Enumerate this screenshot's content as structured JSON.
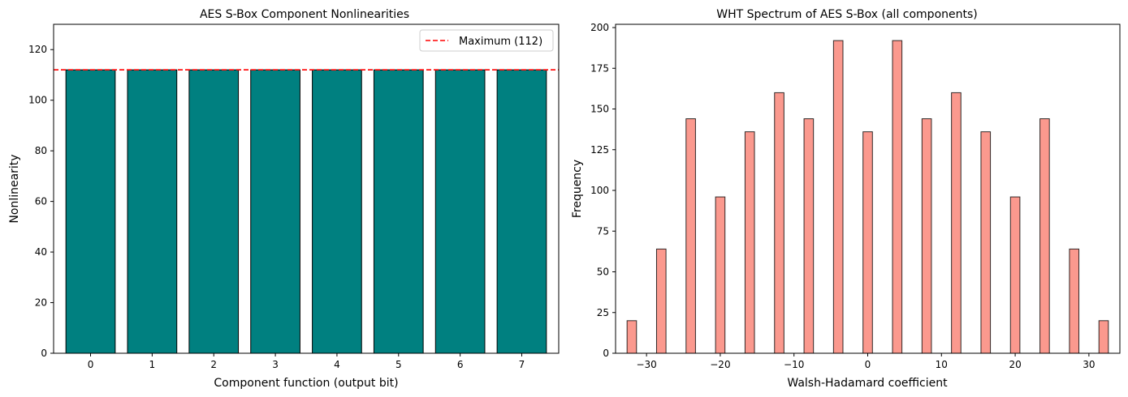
{
  "chart_data": [
    {
      "type": "bar",
      "title": "AES S-Box Component Nonlinearities",
      "xlabel": "Component function (output bit)",
      "ylabel": "Nonlinearity",
      "categories": [
        "0",
        "1",
        "2",
        "3",
        "4",
        "5",
        "6",
        "7"
      ],
      "values": [
        112,
        112,
        112,
        112,
        112,
        112,
        112,
        112
      ],
      "ylim": [
        0,
        130
      ],
      "yticks": [
        0,
        20,
        40,
        60,
        80,
        100,
        120
      ],
      "bar_color": "#008080",
      "reference_line": {
        "value": 112,
        "label": "Maximum (112)",
        "color": "#ff0000",
        "style": "dashed"
      },
      "legend": {
        "position": "top-right",
        "entries": [
          "Maximum (112)"
        ]
      },
      "grid": false
    },
    {
      "type": "bar",
      "title": "WHT Spectrum of AES S-Box (all components)",
      "xlabel": "Walsh-Hadamard coefficient",
      "ylabel": "Frequency",
      "x": [
        -32,
        -28,
        -24,
        -20,
        -16,
        -12,
        -8,
        -4,
        0,
        4,
        8,
        12,
        16,
        20,
        24,
        28,
        32
      ],
      "values": [
        20,
        64,
        144,
        96,
        136,
        160,
        144,
        192,
        136,
        192,
        144,
        160,
        136,
        96,
        144,
        64,
        20
      ],
      "xlim": [
        -34.2,
        34.2
      ],
      "ylim": [
        0,
        202
      ],
      "xticks": [
        -30,
        -20,
        -10,
        0,
        10,
        20,
        30
      ],
      "xtick_labels": [
        "−30",
        "−20",
        "−10",
        "0",
        "10",
        "20",
        "30"
      ],
      "yticks": [
        0,
        25,
        50,
        75,
        100,
        125,
        150,
        175,
        200
      ],
      "bar_color": "#fa8072",
      "bar_alpha": 0.8,
      "grid": false
    }
  ]
}
